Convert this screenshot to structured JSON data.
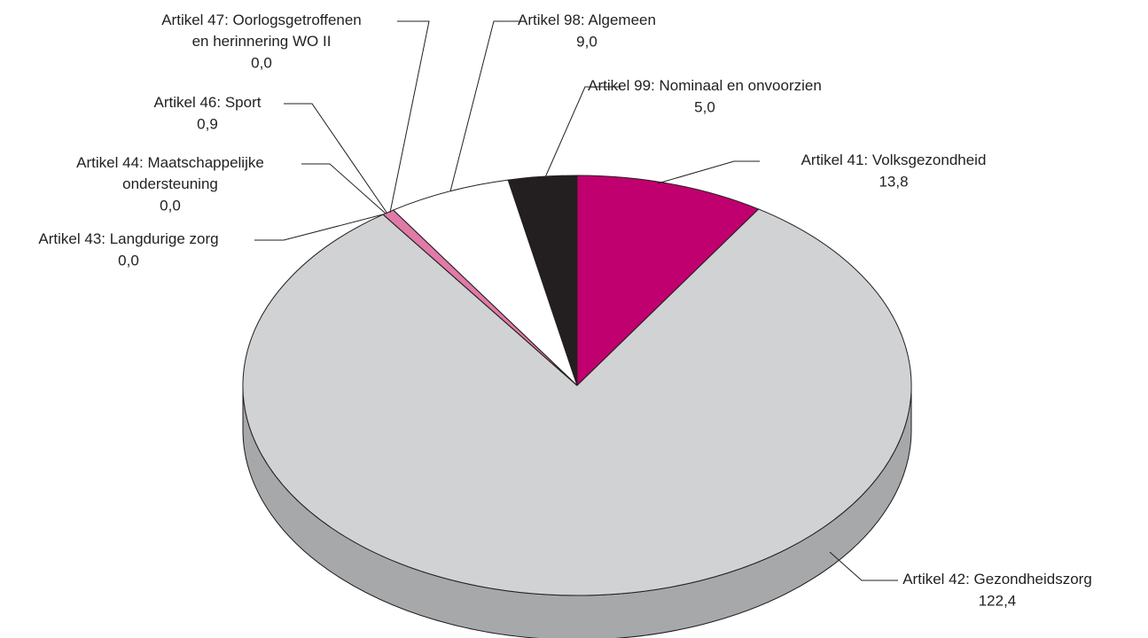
{
  "chart_data": {
    "type": "pie3d",
    "categories": [
      "Artikel 41: Volksgezondheid",
      "Artikel 42: Gezondheidszorg",
      "Artikel 43: Langdurige zorg",
      "Artikel 44: Maatschappelijke\nondersteuning",
      "Artikel 46: Sport",
      "Artikel 47: Oorlogsgetroffenen\nen herinnering WO II",
      "Artikel 98: Algemeen",
      "Artikel 99: Nominaal en onvoorzien"
    ],
    "values": [
      13.8,
      122.4,
      0.0,
      0.0,
      0.9,
      0.0,
      9.0,
      5.0
    ],
    "value_labels": [
      "13,8",
      "122,4",
      "0,0",
      "0,0",
      "0,9",
      "0,0",
      "9,0",
      "5,0"
    ],
    "colors": [
      "#c0006f",
      "#d1d2d4",
      "#d1d2d4",
      "#d1d2d4",
      "#e07aa6",
      "#d1d2d4",
      "#ffffff",
      "#231f20"
    ]
  }
}
